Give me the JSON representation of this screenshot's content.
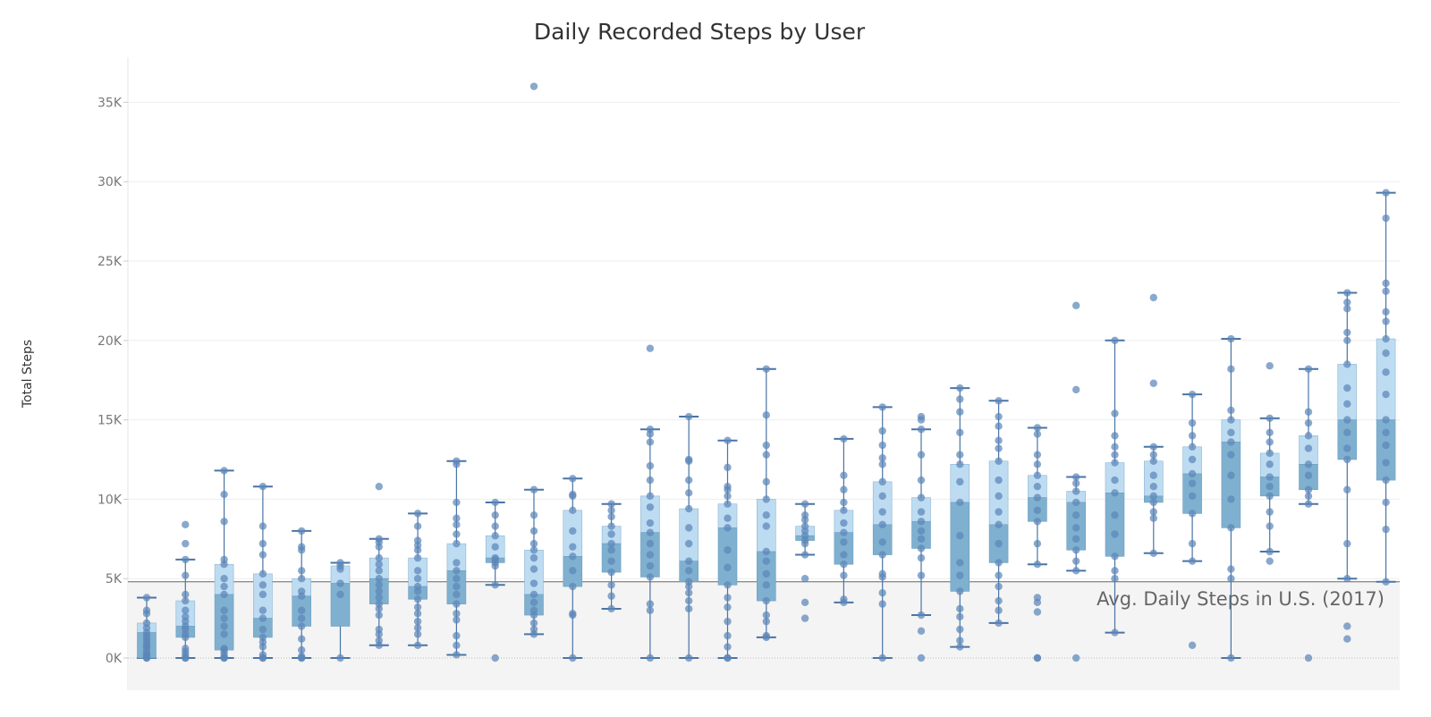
{
  "chart_data": {
    "type": "box",
    "title": "Daily Recorded Steps by User",
    "xlabel": "",
    "ylabel": "Total Steps",
    "ylim": [
      -2000,
      38000
    ],
    "yticks": [
      0,
      5000,
      10000,
      15000,
      20000,
      25000,
      30000,
      35000
    ],
    "ytick_labels": [
      "0K",
      "5K",
      "10K",
      "15K",
      "20K",
      "25K",
      "30K",
      "35K"
    ],
    "grid": true,
    "reference_line": {
      "value": 4800,
      "label": "Avg. Daily Steps in U.S. (2017)"
    },
    "colors": {
      "upper_box": "#bddcf2",
      "lower_box": "#7fb0cf",
      "points": "#5b86b8",
      "whisker": "#4a74a6",
      "band": "#f4f4f4",
      "grid": "#eeeeee"
    },
    "series": [
      {
        "min": 0,
        "q1": 0,
        "median": 1600,
        "q3": 2200,
        "max": 3800,
        "points": [
          0,
          0,
          100,
          200,
          300,
          500,
          700,
          800,
          1000,
          1200,
          1400,
          1600,
          1900,
          2200,
          2800,
          3000,
          3800
        ]
      },
      {
        "min": 0,
        "q1": 1300,
        "median": 2000,
        "q3": 3600,
        "max": 6200,
        "points": [
          0,
          0,
          200,
          400,
          600,
          1300,
          1500,
          1800,
          2000,
          2300,
          2600,
          3000,
          3600,
          4000,
          5200,
          6200,
          7200,
          8400
        ]
      },
      {
        "min": 0,
        "q1": 500,
        "median": 4000,
        "q3": 5900,
        "max": 11800,
        "points": [
          0,
          0,
          100,
          300,
          500,
          600,
          1500,
          2000,
          2500,
          3000,
          4000,
          4500,
          5000,
          5900,
          6200,
          8600,
          10300,
          11800
        ]
      },
      {
        "min": 0,
        "q1": 1300,
        "median": 2500,
        "q3": 5300,
        "max": 10800,
        "points": [
          0,
          0,
          200,
          700,
          1000,
          1300,
          1800,
          2500,
          3000,
          4000,
          4600,
          5300,
          6500,
          7200,
          8300,
          10800
        ]
      },
      {
        "min": 0,
        "q1": 2000,
        "median": 3900,
        "q3": 5000,
        "max": 8000,
        "points": [
          0,
          0,
          100,
          500,
          1200,
          2000,
          2500,
          3000,
          3900,
          4200,
          5000,
          5500,
          6800,
          7000,
          8000
        ]
      },
      {
        "min": 0,
        "q1": 2000,
        "median": 4700,
        "q3": 5800,
        "max": 6000,
        "points": [
          0,
          4000,
          4700,
          5600,
          5800,
          6000
        ]
      },
      {
        "min": 800,
        "q1": 3400,
        "median": 5000,
        "q3": 6300,
        "max": 7500,
        "points": [
          800,
          1100,
          1500,
          1800,
          2700,
          3100,
          3400,
          3800,
          4200,
          4600,
          5000,
          5500,
          5900,
          6300,
          7000,
          7300,
          7500,
          10800
        ]
      },
      {
        "min": 800,
        "q1": 3700,
        "median": 4500,
        "q3": 6300,
        "max": 9100,
        "points": [
          800,
          1500,
          1900,
          2300,
          2800,
          3200,
          3700,
          4200,
          4500,
          5000,
          5500,
          6300,
          6800,
          7100,
          7400,
          8300,
          9100
        ]
      },
      {
        "min": 200,
        "q1": 3400,
        "median": 5500,
        "q3": 7200,
        "max": 12400,
        "points": [
          200,
          800,
          1400,
          2400,
          2800,
          3400,
          4000,
          4500,
          5000,
          5500,
          6000,
          7200,
          7800,
          8400,
          8800,
          9800,
          12200,
          12400
        ]
      },
      {
        "min": 4600,
        "q1": 6000,
        "median": 6300,
        "q3": 7700,
        "max": 9800,
        "points": [
          0,
          4600,
          5800,
          6000,
          6200,
          6300,
          7000,
          7700,
          8300,
          9000,
          9800
        ]
      },
      {
        "min": 1500,
        "q1": 2700,
        "median": 4000,
        "q3": 6800,
        "max": 10600,
        "points": [
          1500,
          1800,
          2200,
          2700,
          3000,
          3500,
          4000,
          4700,
          5600,
          6300,
          6800,
          7200,
          8000,
          9000,
          10600,
          36000
        ]
      },
      {
        "min": 0,
        "q1": 4500,
        "median": 6400,
        "q3": 9300,
        "max": 11300,
        "points": [
          0,
          2700,
          2800,
          4500,
          5500,
          6400,
          7000,
          8000,
          9300,
          10200,
          10300,
          11300
        ]
      },
      {
        "min": 3100,
        "q1": 5400,
        "median": 7200,
        "q3": 8300,
        "max": 9700,
        "points": [
          3100,
          3900,
          4600,
          5400,
          6100,
          6800,
          7200,
          7800,
          8300,
          8900,
          9300,
          9700
        ]
      },
      {
        "min": 0,
        "q1": 5100,
        "median": 7900,
        "q3": 10200,
        "max": 14400,
        "points": [
          0,
          3000,
          3400,
          5100,
          5800,
          6500,
          7200,
          7900,
          8500,
          9500,
          10200,
          11200,
          12100,
          13600,
          14100,
          14400,
          19500
        ]
      },
      {
        "min": 0,
        "q1": 4800,
        "median": 6100,
        "q3": 9400,
        "max": 15200,
        "points": [
          0,
          3100,
          3600,
          4100,
          4500,
          4800,
          5500,
          6100,
          7200,
          8200,
          9400,
          10400,
          11200,
          12400,
          12500,
          15200
        ]
      },
      {
        "min": 0,
        "q1": 4600,
        "median": 8200,
        "q3": 9700,
        "max": 13700,
        "points": [
          0,
          0,
          700,
          1400,
          2300,
          3200,
          3800,
          4600,
          5700,
          6800,
          8200,
          8800,
          9700,
          10200,
          10600,
          10800,
          12000,
          13700
        ]
      },
      {
        "min": 1300,
        "q1": 3600,
        "median": 6700,
        "q3": 10000,
        "max": 18200,
        "points": [
          1300,
          1400,
          2300,
          2700,
          3600,
          4600,
          5300,
          6100,
          6700,
          8300,
          9000,
          10000,
          11100,
          12800,
          13400,
          15300,
          18200
        ]
      },
      {
        "min": 6500,
        "q1": 7400,
        "median": 7700,
        "q3": 8300,
        "max": 9700,
        "points": [
          2500,
          3500,
          5000,
          6500,
          7200,
          7400,
          7700,
          8000,
          8300,
          8700,
          9000,
          9700
        ]
      },
      {
        "min": 3500,
        "q1": 5900,
        "median": 7900,
        "q3": 9300,
        "max": 13800,
        "points": [
          3500,
          3700,
          5200,
          5900,
          6500,
          7300,
          7900,
          8500,
          9300,
          9800,
          10600,
          11500,
          13800
        ]
      },
      {
        "min": 0,
        "q1": 6500,
        "median": 8400,
        "q3": 11100,
        "max": 15800,
        "points": [
          0,
          3400,
          4100,
          5100,
          5300,
          6500,
          7300,
          8400,
          9200,
          10200,
          11100,
          12200,
          12600,
          13400,
          14300,
          15800
        ]
      },
      {
        "min": 2700,
        "q1": 6900,
        "median": 8600,
        "q3": 10100,
        "max": 14400,
        "points": [
          0,
          1700,
          2700,
          5200,
          6300,
          6900,
          7500,
          8000,
          8600,
          9200,
          10100,
          11200,
          12800,
          14400,
          15000,
          15200
        ]
      },
      {
        "min": 700,
        "q1": 4200,
        "median": 9800,
        "q3": 12200,
        "max": 17000,
        "points": [
          700,
          1100,
          1800,
          2600,
          3100,
          4200,
          5200,
          6000,
          7700,
          9800,
          11100,
          12200,
          12800,
          14200,
          15500,
          16300,
          17000
        ]
      },
      {
        "min": 2200,
        "q1": 6000,
        "median": 8400,
        "q3": 12400,
        "max": 16200,
        "points": [
          2200,
          3000,
          3600,
          4500,
          5200,
          6000,
          7200,
          8400,
          9200,
          10200,
          11200,
          12400,
          13200,
          13700,
          14600,
          15200,
          16200
        ]
      },
      {
        "min": 5900,
        "q1": 8600,
        "median": 10100,
        "q3": 11500,
        "max": 14500,
        "points": [
          0,
          0,
          2900,
          3500,
          3800,
          5900,
          7200,
          8600,
          9300,
          10100,
          10800,
          11500,
          12200,
          12800,
          14100,
          14500
        ]
      },
      {
        "min": 5500,
        "q1": 6800,
        "median": 9800,
        "q3": 10500,
        "max": 11400,
        "points": [
          0,
          5500,
          6100,
          6800,
          7500,
          8200,
          9000,
          9800,
          10500,
          11000,
          11400,
          16900,
          22200
        ]
      },
      {
        "min": 1600,
        "q1": 6400,
        "median": 10400,
        "q3": 12300,
        "max": 20000,
        "points": [
          1600,
          5000,
          5500,
          6400,
          7800,
          9000,
          10400,
          11200,
          12300,
          12800,
          13300,
          14000,
          15400,
          20000
        ]
      },
      {
        "min": 6600,
        "q1": 9800,
        "median": 10200,
        "q3": 12400,
        "max": 13300,
        "points": [
          6600,
          8800,
          9200,
          9800,
          10200,
          10800,
          11500,
          12400,
          12800,
          13300,
          17300,
          22700
        ]
      },
      {
        "min": 6100,
        "q1": 9100,
        "median": 11600,
        "q3": 13300,
        "max": 16600,
        "points": [
          800,
          6100,
          7200,
          9100,
          10200,
          11000,
          11600,
          12500,
          13300,
          14000,
          14800,
          16600
        ]
      },
      {
        "min": 0,
        "q1": 8200,
        "median": 13600,
        "q3": 15000,
        "max": 20100,
        "points": [
          0,
          5000,
          5600,
          8200,
          10000,
          11500,
          12800,
          13600,
          14200,
          15000,
          15600,
          18200,
          20100
        ]
      },
      {
        "min": 6700,
        "q1": 10200,
        "median": 11400,
        "q3": 12900,
        "max": 15100,
        "points": [
          6100,
          6700,
          8300,
          9200,
          10200,
          10800,
          11400,
          12200,
          12900,
          13600,
          14200,
          15100,
          18400
        ]
      },
      {
        "min": 9700,
        "q1": 10600,
        "median": 12200,
        "q3": 14000,
        "max": 18200,
        "points": [
          0,
          9700,
          10200,
          10600,
          11500,
          12200,
          13200,
          14000,
          14800,
          15500,
          18200
        ]
      },
      {
        "min": 5000,
        "q1": 12500,
        "median": 15000,
        "q3": 18500,
        "max": 23000,
        "points": [
          1200,
          2000,
          5000,
          7200,
          10600,
          12500,
          13200,
          14200,
          15000,
          16000,
          17000,
          18500,
          20000,
          20500,
          22000,
          22400,
          23000
        ]
      },
      {
        "min": 4800,
        "q1": 11200,
        "median": 15000,
        "q3": 20100,
        "max": 29300,
        "points": [
          4800,
          8100,
          9800,
          11200,
          12300,
          13400,
          14200,
          15000,
          16600,
          18000,
          19200,
          20100,
          21200,
          21800,
          23100,
          23600,
          27700,
          29300
        ]
      }
    ]
  }
}
